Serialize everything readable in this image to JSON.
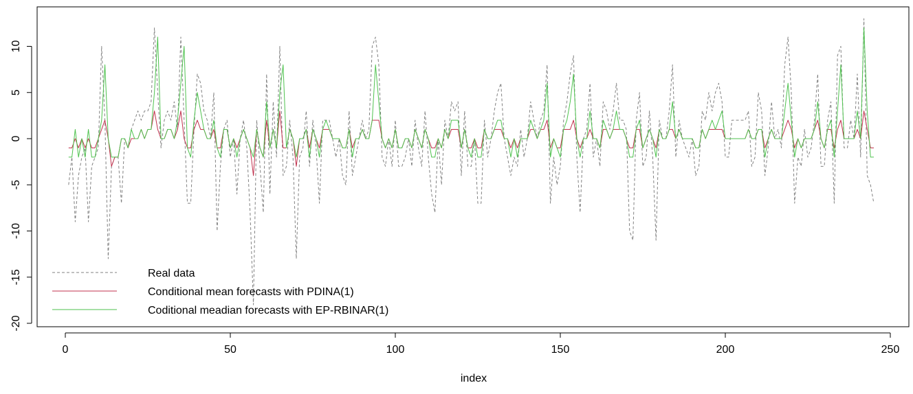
{
  "chart_data": {
    "type": "line",
    "title": "",
    "xlabel": "index",
    "ylabel": "",
    "xlim": [
      1,
      246
    ],
    "ylim": [
      -20,
      13
    ],
    "x_ticks": [
      0,
      50,
      100,
      150,
      200,
      250
    ],
    "y_ticks": [
      -20,
      -15,
      -10,
      -5,
      0,
      5,
      10
    ],
    "legend_position": "bottom-left",
    "series": [
      {
        "name": "Real data",
        "color": "#808080",
        "style": "dashed",
        "values": [
          -5,
          -2,
          -9,
          -4,
          -2,
          -1,
          -9,
          -3,
          -2,
          -1,
          10,
          2,
          -13,
          -3,
          -2,
          -2,
          -7,
          0,
          -1,
          1,
          2,
          3,
          2,
          3,
          3,
          4,
          12,
          5,
          -1,
          2,
          3,
          2,
          4,
          1,
          11,
          2,
          -7,
          -7,
          1,
          7,
          6,
          3,
          2,
          0,
          5,
          -10,
          -3,
          1,
          2,
          -2,
          0,
          -6,
          0,
          2,
          -1,
          -8,
          -18,
          2,
          -3,
          -8,
          7,
          -6,
          4,
          -2,
          10,
          -4,
          -3,
          2,
          -2,
          -13,
          -2,
          -1,
          3,
          -3,
          2,
          -1,
          -7,
          2,
          2,
          2,
          0,
          -2,
          0,
          -4,
          -5,
          3,
          -4,
          -2,
          0,
          2,
          0,
          1,
          10,
          11,
          8,
          -2,
          -3,
          0,
          -3,
          2,
          -3,
          -3,
          -2,
          0,
          -3,
          2,
          -1,
          -3,
          3,
          -2,
          -6,
          -8,
          0,
          -5,
          2,
          0,
          4,
          3,
          4,
          -4,
          3,
          -3,
          -3,
          0,
          -7,
          -7,
          2,
          -2,
          0,
          3,
          5,
          6,
          0,
          -2,
          -4,
          -2,
          -3,
          1,
          -2,
          0,
          4,
          2,
          0,
          2,
          3,
          8,
          -7,
          -2,
          -5,
          -3,
          2,
          4,
          7,
          9,
          -2,
          -8,
          0,
          1,
          6,
          -2,
          0,
          -3,
          4,
          3,
          1,
          3,
          6,
          2,
          2,
          1,
          -10,
          -11,
          2,
          5,
          -3,
          -2,
          3,
          -2,
          -11,
          2,
          0,
          0,
          3,
          8,
          -2,
          2,
          0,
          -1,
          -2,
          0,
          -4,
          -3,
          3,
          2,
          5,
          3,
          5,
          6,
          4,
          -2,
          -2,
          2,
          2,
          2,
          2,
          2,
          3,
          -3,
          -2,
          5,
          3,
          -4,
          -1,
          4,
          0,
          1,
          -1,
          8,
          11,
          5,
          -7,
          -2,
          -3,
          1,
          -2,
          -1,
          2,
          7,
          -3,
          -3,
          2,
          4,
          -7,
          9,
          10,
          -1,
          -1,
          2,
          0,
          7,
          -2,
          13,
          -4,
          -5,
          -7
        ]
      },
      {
        "name": "Conditional mean forecasts with PDINA(1)",
        "color": "#c0304c",
        "style": "solid",
        "values": [
          -1,
          -1,
          0,
          -1,
          0,
          -1,
          0,
          -1,
          -1,
          0,
          1,
          2,
          0,
          -3,
          -2,
          -2,
          0,
          0,
          -1,
          0,
          0,
          0,
          1,
          0,
          1,
          1,
          3,
          1,
          0,
          0,
          1,
          1,
          0,
          1,
          3,
          0,
          -1,
          -1,
          1,
          2,
          1,
          1,
          0,
          0,
          1,
          -1,
          -1,
          1,
          1,
          -1,
          0,
          -1,
          0,
          1,
          0,
          -1,
          -4,
          1,
          -1,
          -2,
          2,
          -1,
          1,
          -1,
          3,
          -1,
          -1,
          1,
          0,
          -3,
          0,
          0,
          1,
          -1,
          1,
          0,
          -1,
          1,
          1,
          1,
          0,
          0,
          0,
          -1,
          -1,
          1,
          -1,
          0,
          0,
          1,
          0,
          0,
          2,
          2,
          2,
          0,
          -1,
          0,
          -1,
          1,
          -1,
          -1,
          0,
          0,
          -1,
          1,
          0,
          -1,
          1,
          0,
          -1,
          -1,
          0,
          -1,
          1,
          0,
          1,
          1,
          1,
          -1,
          1,
          -1,
          -1,
          0,
          -1,
          -1,
          1,
          0,
          0,
          1,
          1,
          1,
          0,
          0,
          -1,
          0,
          -1,
          0,
          0,
          0,
          1,
          1,
          0,
          1,
          1,
          2,
          -1,
          0,
          -1,
          -1,
          1,
          1,
          1,
          2,
          0,
          -1,
          0,
          0,
          1,
          0,
          0,
          -1,
          1,
          1,
          0,
          1,
          1,
          1,
          1,
          0,
          -1,
          -1,
          1,
          1,
          -1,
          0,
          1,
          0,
          -1,
          1,
          0,
          0,
          1,
          1,
          0,
          1,
          0,
          0,
          0,
          0,
          -1,
          -1,
          1,
          0,
          1,
          1,
          1,
          1,
          1,
          0,
          0,
          0,
          0,
          0,
          0,
          0,
          1,
          0,
          0,
          1,
          1,
          -1,
          0,
          1,
          0,
          0,
          0,
          1,
          2,
          1,
          -1,
          0,
          -1,
          0,
          0,
          0,
          1,
          2,
          0,
          -1,
          1,
          1,
          -1,
          1,
          2,
          0,
          0,
          0,
          0,
          1,
          0,
          3,
          1,
          -1,
          -1
        ]
      },
      {
        "name": "Coditional meadian forecasts with EP-RBINAR(1)",
        "color": "#4ec24e",
        "style": "solid",
        "values": [
          -2,
          -2,
          1,
          -2,
          0,
          -2,
          1,
          -2,
          -2,
          0,
          2,
          8,
          0,
          -2,
          -2,
          -2,
          0,
          0,
          -1,
          1,
          0,
          0,
          1,
          0,
          1,
          1,
          5,
          11,
          0,
          0,
          1,
          1,
          0,
          2,
          6,
          10,
          -1,
          -2,
          2,
          5,
          3,
          1,
          0,
          0,
          2,
          -1,
          -2,
          1,
          1,
          -1,
          0,
          -2,
          0,
          1,
          0,
          -1,
          -2,
          1,
          -1,
          -2,
          4,
          -1,
          1,
          -1,
          5,
          8,
          -1,
          1,
          0,
          -2,
          0,
          0,
          1,
          -2,
          1,
          0,
          -2,
          1,
          2,
          1,
          0,
          0,
          0,
          -1,
          -1,
          1,
          -2,
          0,
          0,
          1,
          0,
          0,
          2,
          8,
          4,
          0,
          -1,
          0,
          -1,
          1,
          -1,
          -1,
          0,
          0,
          -1,
          1,
          0,
          -1,
          1,
          0,
          -2,
          -2,
          0,
          -1,
          1,
          0,
          2,
          2,
          2,
          -1,
          1,
          -1,
          -2,
          0,
          -2,
          -2,
          1,
          0,
          0,
          1,
          2,
          2,
          0,
          0,
          -2,
          0,
          -2,
          0,
          0,
          0,
          2,
          1,
          0,
          1,
          2,
          6,
          -2,
          0,
          -1,
          -2,
          1,
          2,
          4,
          7,
          0,
          -2,
          0,
          0,
          3,
          0,
          0,
          -1,
          2,
          1,
          0,
          1,
          3,
          1,
          1,
          0,
          -2,
          -2,
          1,
          2,
          -1,
          0,
          1,
          0,
          -2,
          1,
          0,
          0,
          1,
          4,
          0,
          1,
          0,
          0,
          0,
          0,
          -1,
          -1,
          1,
          0,
          1,
          2,
          1,
          2,
          3,
          0,
          0,
          0,
          0,
          0,
          0,
          0,
          1,
          0,
          0,
          1,
          1,
          -2,
          0,
          1,
          0,
          0,
          0,
          3,
          6,
          2,
          -2,
          0,
          -1,
          0,
          0,
          0,
          1,
          4,
          0,
          -1,
          1,
          2,
          -2,
          3,
          8,
          0,
          0,
          0,
          0,
          3,
          0,
          12,
          3,
          -2,
          -2
        ]
      }
    ]
  }
}
